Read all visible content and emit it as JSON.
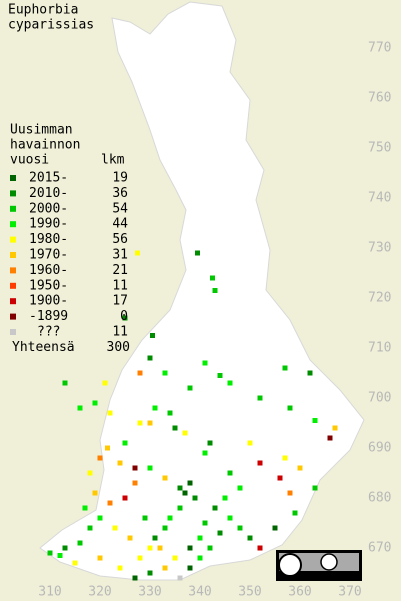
{
  "title": [
    "Euphorbia",
    "cyparissias"
  ],
  "legend": {
    "header": [
      "Uusimman",
      "havainnon",
      "vuosi"
    ],
    "count_header": "lkm",
    "entries": [
      {
        "label": "2015-",
        "count": 19,
        "color": "#006400"
      },
      {
        "label": "2010-",
        "count": 36,
        "color": "#008c00"
      },
      {
        "label": "2000-",
        "count": 54,
        "color": "#00c800"
      },
      {
        "label": "1990-",
        "count": 44,
        "color": "#00ee00"
      },
      {
        "label": "1980-",
        "count": 56,
        "color": "#ffff00"
      },
      {
        "label": "1970-",
        "count": 31,
        "color": "#ffc800"
      },
      {
        "label": "1960-",
        "count": 21,
        "color": "#ff8000"
      },
      {
        "label": "1950-",
        "count": 11,
        "color": "#ff3c00"
      },
      {
        "label": "1900-",
        "count": 17,
        "color": "#cc0000"
      },
      {
        "label": "-1899",
        "count": 0,
        "color": "#800000"
      },
      {
        "label": "???",
        "count": 11,
        "color": "#c8c8c8"
      }
    ],
    "total_label": "Yhteensä",
    "total": 300
  },
  "xticks": [
    310,
    320,
    330,
    340,
    350,
    360,
    370
  ],
  "yticks": [
    670,
    680,
    690,
    700,
    710,
    720,
    730,
    740,
    750,
    760,
    770
  ],
  "squares": [
    [
      339.5,
      729,
      1
    ],
    [
      327.5,
      729,
      4
    ],
    [
      342.5,
      724,
      2
    ],
    [
      343,
      721.5,
      2
    ],
    [
      325,
      716,
      1
    ],
    [
      330.5,
      712.5,
      1
    ],
    [
      328,
      705,
      6
    ],
    [
      341,
      707,
      3
    ],
    [
      321,
      703,
      4
    ],
    [
      330,
      708,
      1
    ],
    [
      333,
      705,
      3
    ],
    [
      344,
      704.5,
      2
    ],
    [
      346,
      703,
      3
    ],
    [
      357,
      706,
      2
    ],
    [
      362,
      705,
      1
    ],
    [
      338,
      702,
      2
    ],
    [
      316,
      698,
      3
    ],
    [
      313,
      703,
      2
    ],
    [
      319,
      699,
      3
    ],
    [
      322,
      697,
      4
    ],
    [
      328,
      695,
      4
    ],
    [
      331,
      698,
      3
    ],
    [
      334,
      697,
      2
    ],
    [
      337,
      693,
      4
    ],
    [
      330,
      695,
      5
    ],
    [
      321.5,
      690,
      5
    ],
    [
      325,
      691,
      3
    ],
    [
      352,
      700,
      2
    ],
    [
      358,
      698,
      2
    ],
    [
      363,
      695.5,
      3
    ],
    [
      366,
      692,
      9
    ],
    [
      367,
      694,
      5
    ],
    [
      335,
      694,
      1
    ],
    [
      342,
      691,
      1
    ],
    [
      341,
      689,
      3
    ],
    [
      350,
      691,
      4
    ],
    [
      352,
      687,
      8
    ],
    [
      357,
      688,
      4
    ],
    [
      356,
      684,
      8
    ],
    [
      360,
      686,
      5
    ],
    [
      363,
      682,
      2
    ],
    [
      318,
      685,
      4
    ],
    [
      320,
      688,
      6
    ],
    [
      324,
      687,
      5
    ],
    [
      327,
      683,
      6
    ],
    [
      330,
      686,
      3
    ],
    [
      333,
      684,
      5
    ],
    [
      336,
      682,
      1
    ],
    [
      337,
      681,
      0
    ],
    [
      338,
      683,
      0
    ],
    [
      339,
      680,
      1
    ],
    [
      336,
      678,
      2
    ],
    [
      334,
      676,
      3
    ],
    [
      333,
      674,
      2
    ],
    [
      331,
      672,
      1
    ],
    [
      330,
      670,
      4
    ],
    [
      328,
      668,
      4
    ],
    [
      326,
      672,
      5
    ],
    [
      323,
      674,
      4
    ],
    [
      320,
      676,
      3
    ],
    [
      318,
      674,
      2
    ],
    [
      316,
      671,
      2
    ],
    [
      313,
      670,
      1
    ],
    [
      310,
      669,
      2
    ],
    [
      312,
      668.5,
      3
    ],
    [
      315,
      667,
      4
    ],
    [
      320,
      668,
      5
    ],
    [
      324,
      666,
      4
    ],
    [
      327,
      664,
      0
    ],
    [
      330,
      665,
      1
    ],
    [
      333,
      666,
      5
    ],
    [
      336,
      664,
      10
    ],
    [
      338,
      666,
      0
    ],
    [
      340,
      668,
      3
    ],
    [
      342,
      670,
      2
    ],
    [
      344,
      673,
      1
    ],
    [
      346,
      676,
      3
    ],
    [
      348,
      674,
      2
    ],
    [
      350,
      672,
      1
    ],
    [
      352,
      670,
      8
    ],
    [
      355,
      674,
      0
    ],
    [
      359,
      677,
      2
    ],
    [
      358,
      681,
      6
    ],
    [
      345,
      680,
      3
    ],
    [
      343,
      678,
      1
    ],
    [
      341,
      675,
      2
    ],
    [
      340,
      672,
      3
    ],
    [
      338,
      670,
      0
    ],
    [
      335,
      668,
      4
    ],
    [
      332,
      670,
      5
    ],
    [
      329,
      676,
      2
    ],
    [
      325,
      680,
      8
    ],
    [
      322,
      679,
      6
    ],
    [
      319,
      681,
      5
    ],
    [
      317,
      678,
      3
    ],
    [
      327,
      686,
      9
    ],
    [
      346,
      685,
      2
    ],
    [
      348,
      682,
      3
    ]
  ]
}
